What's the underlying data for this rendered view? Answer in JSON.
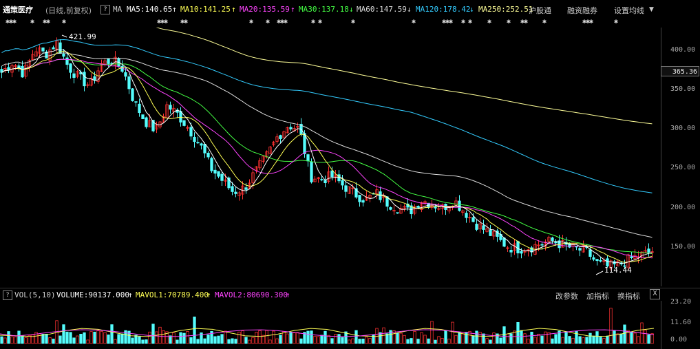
{
  "header": {
    "stock_name": "通策医疗",
    "period": "(日线,前复权)",
    "help_label": "?",
    "ma_label": "MA",
    "ma5": "MA5:140.65",
    "ma10": "MA10:141.25",
    "ma20": "MA20:135.59",
    "ma30": "MA30:137.18",
    "ma60": "MA60:147.59",
    "ma120": "MA120:178.42",
    "ma250": "MA250:252.51",
    "menu_hgt": "沪股通",
    "menu_margin": "融资融券",
    "menu_settings": "设置均线",
    "colors": {
      "ma5": "#ffffff",
      "ma10": "#ffff55",
      "ma20": "#ff44ff",
      "ma30": "#44ff44",
      "ma60": "#dddddd",
      "ma120": "#33ccff",
      "ma250": "#ffff99"
    }
  },
  "price_axis": {
    "ticks": [
      "400.00",
      "350.00",
      "300.00",
      "250.00",
      "200.00",
      "150.00"
    ],
    "current": "365.36"
  },
  "annotations": {
    "high": "421.99",
    "low": "114.44"
  },
  "volume_panel": {
    "name": "VOL(5,10)",
    "help_label": "?",
    "volume": "VOLUME:90137.000",
    "mavol1": "MAVOL1:70789.400",
    "mavol2": "MAVOL2:80690.300",
    "btn_params": "改参数",
    "btn_add": "加指标",
    "btn_switch": "换指标",
    "close_label": "X",
    "ticks": [
      "23.20",
      "11.60",
      "0.00"
    ]
  },
  "chart_data": {
    "type": "candlestick",
    "ylim": [
      100,
      430
    ],
    "price_high": 421.99,
    "price_low": 114.44,
    "close_path": [
      372,
      385,
      370,
      402,
      395,
      410,
      380,
      365,
      355,
      382,
      388,
      376,
      335,
      310,
      298,
      330,
      318,
      300,
      280,
      250,
      235,
      220,
      225,
      245,
      265,
      290,
      305,
      300,
      240,
      236,
      240,
      228,
      218,
      210,
      218,
      206,
      200,
      195,
      210,
      205,
      200,
      210,
      195,
      180,
      170,
      160,
      150,
      148,
      150,
      155,
      158,
      152,
      148,
      145,
      130,
      125,
      128,
      135,
      140,
      145
    ],
    "volume_unit": "万",
    "volume_max": 23.2
  }
}
